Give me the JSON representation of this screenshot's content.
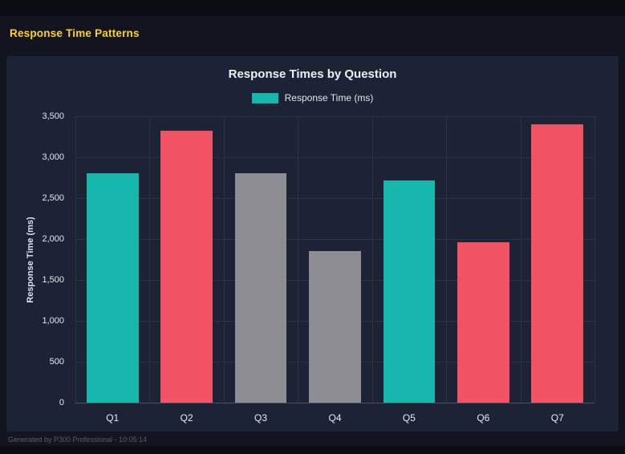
{
  "page": {
    "title": "Response Time Patterns",
    "footer": "Generated by P300 Professional - 10:05:14"
  },
  "colors": {
    "header_accent": "#ffd21e",
    "teal": "#16b8ad",
    "red": "#f25364",
    "gray": "#8d8d93",
    "panel_bg": "#1c2334",
    "page_bg": "#12151f",
    "grid": "#2b3246"
  },
  "chart_data": {
    "type": "bar",
    "title": "Response Times by Question",
    "legend": [
      {
        "label": "Response Time (ms)",
        "color": "#16b8ad"
      }
    ],
    "legend_position": "top",
    "categories": [
      "Q1",
      "Q2",
      "Q3",
      "Q4",
      "Q5",
      "Q6",
      "Q7"
    ],
    "series": [
      {
        "name": "Response Time (ms)",
        "values": [
          2800,
          3320,
          2800,
          1850,
          2720,
          1960,
          3400
        ]
      }
    ],
    "bar_colors": [
      "#16b8ad",
      "#f25364",
      "#8d8d93",
      "#8d8d93",
      "#16b8ad",
      "#f25364",
      "#f25364"
    ],
    "xlabel": "",
    "ylabel": "Response Time (ms)",
    "ylim": [
      0,
      3500
    ],
    "ytick_step": 500,
    "grid": true
  }
}
